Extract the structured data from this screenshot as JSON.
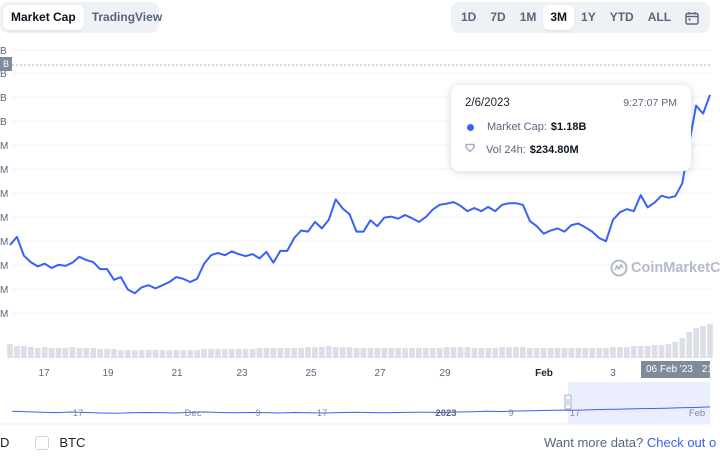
{
  "toggle": {
    "market_cap": "Market Cap",
    "tradingview": "TradingView"
  },
  "range_buttons": [
    "1D",
    "7D",
    "1M",
    "3M",
    "1Y",
    "YTD",
    "ALL"
  ],
  "active_range": "3M",
  "icons": {
    "calendar": "calendar-icon",
    "shield": "shield-icon",
    "logo": "coinmarketcap-logo-icon"
  },
  "colors": {
    "line": "#3861fb",
    "volume": "#dcdfe6",
    "navigator": "#3861fb",
    "selection": "#e6ebfd",
    "badge": "#808a9d"
  },
  "y_axis_labels": [
    "B",
    "B",
    "B",
    "B",
    "M",
    "M",
    "M",
    "M",
    "M",
    "M",
    "M",
    "M"
  ],
  "top_badge": "B",
  "tooltip": {
    "date": "2/6/2023",
    "time": "9:27:07 PM",
    "market_cap_label": "Market Cap:",
    "market_cap_value": "$1.18B",
    "vol_label": "Vol 24h:",
    "vol_value": "$234.80M"
  },
  "watermark": "CoinMarketC",
  "date_badge": "06 Feb '23",
  "date_badge_tail": "21",
  "navigator_labels": [
    "17",
    "Dec",
    "9",
    "17",
    "2023",
    "9",
    "17",
    "Feb"
  ],
  "bottom": {
    "usd_fragment": "D",
    "btc_label": "BTC",
    "more_data": "Want more data?",
    "check_out": "Check out o"
  },
  "chart_data": {
    "type": "line",
    "series_name": "Market Cap",
    "x_tick_labels": [
      "17",
      "19",
      "21",
      "23",
      "25",
      "27",
      "29",
      "Feb",
      "3"
    ],
    "bold_tick": "Feb",
    "values": [
      0.905,
      0.92,
      0.885,
      0.873,
      0.865,
      0.87,
      0.862,
      0.868,
      0.866,
      0.872,
      0.883,
      0.877,
      0.873,
      0.86,
      0.86,
      0.84,
      0.845,
      0.822,
      0.815,
      0.826,
      0.83,
      0.824,
      0.83,
      0.836,
      0.845,
      0.842,
      0.836,
      0.842,
      0.87,
      0.886,
      0.89,
      0.886,
      0.893,
      0.888,
      0.884,
      0.888,
      0.88,
      0.892,
      0.872,
      0.894,
      0.894,
      0.918,
      0.932,
      0.93,
      0.948,
      0.936,
      0.952,
      0.99,
      0.973,
      0.962,
      0.93,
      0.93,
      0.951,
      0.94,
      0.956,
      0.958,
      0.954,
      0.961,
      0.955,
      0.948,
      0.957,
      0.971,
      0.98,
      0.982,
      0.985,
      0.978,
      0.968,
      0.974,
      0.968,
      0.976,
      0.968,
      0.98,
      0.983,
      0.983,
      0.98,
      0.95,
      0.94,
      0.926,
      0.932,
      0.936,
      0.93,
      0.942,
      0.945,
      0.938,
      0.93,
      0.918,
      0.912,
      0.952,
      0.966,
      0.972,
      0.968,
      0.998,
      0.975,
      0.984,
      0.997,
      0.993,
      0.996,
      1.02,
      1.095,
      1.165,
      1.15,
      1.185
    ],
    "volume": [
      14,
      12,
      12,
      11,
      10,
      11,
      10,
      10,
      10,
      11,
      10,
      10,
      10,
      9,
      9,
      9,
      8,
      8,
      8,
      8,
      8,
      8,
      8,
      8,
      8,
      8,
      8,
      8,
      9,
      9,
      9,
      9,
      9,
      9,
      9,
      9,
      10,
      10,
      10,
      10,
      10,
      10,
      10,
      11,
      11,
      11,
      12,
      11,
      11,
      11,
      10,
      10,
      10,
      10,
      10,
      10,
      10,
      10,
      10,
      10,
      10,
      10,
      10,
      11,
      11,
      11,
      11,
      10,
      10,
      10,
      10,
      11,
      11,
      11,
      11,
      10,
      10,
      10,
      10,
      10,
      10,
      10,
      10,
      10,
      10,
      10,
      10,
      11,
      11,
      11,
      12,
      12,
      12,
      13,
      13,
      14,
      16,
      20,
      26,
      30,
      32,
      34
    ],
    "navigator": [
      0.55,
      0.52,
      0.48,
      0.46,
      0.5,
      0.47,
      0.44,
      0.42,
      0.45,
      0.47,
      0.46,
      0.44,
      0.48,
      0.5,
      0.47,
      0.45,
      0.47,
      0.46,
      0.44,
      0.47,
      0.45,
      0.44,
      0.46,
      0.48,
      0.47,
      0.45,
      0.47,
      0.49,
      0.48,
      0.47,
      0.5,
      0.52,
      0.55,
      0.53,
      0.56,
      0.58,
      0.6,
      0.62,
      0.61,
      0.64,
      0.66,
      0.68,
      0.7,
      0.72,
      0.74,
      0.76,
      0.78,
      0.82
    ],
    "ylim": [
      0.78,
      1.25
    ],
    "grid": true,
    "legend": "tooltip"
  }
}
